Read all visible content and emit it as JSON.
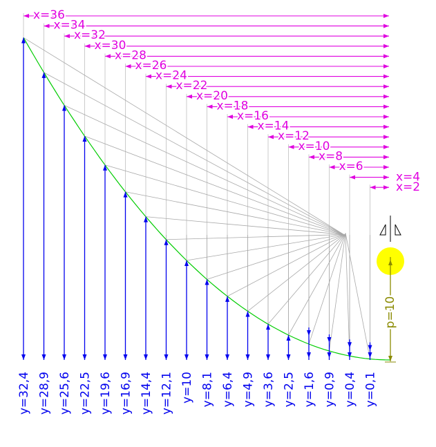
{
  "x_labels": [
    "x=36",
    "x=34",
    "x=32",
    "x=30",
    "x=28",
    "x=26",
    "x=24",
    "x=22",
    "x=20",
    "x=18",
    "x=16",
    "x=14",
    "x=12",
    "x=10",
    "x=8",
    "x=6",
    "x=4",
    "x=2"
  ],
  "y_labels": [
    "y=32,4",
    "y=28,9",
    "y=25,6",
    "y=22,5",
    "y=19,6",
    "y=16,9",
    "y=14,4",
    "y=12,1",
    "y=10",
    "y=8,1",
    "y=6,4",
    "y=4,9",
    "y=3,6",
    "y=2,5",
    "y=1,6",
    "y=0,9",
    "y=0,4",
    "y=0,1"
  ],
  "p_label": "p=10",
  "colors": {
    "magenta": "#e000e0",
    "blue": "#0000ee",
    "green": "#00cc00",
    "olive": "#8a8a00",
    "grey": "#a8a8a8",
    "yellow": "#ffff00"
  },
  "icons": {
    "focus": "yellow-circle",
    "symmetry": "axis-symmetry-icon"
  }
}
